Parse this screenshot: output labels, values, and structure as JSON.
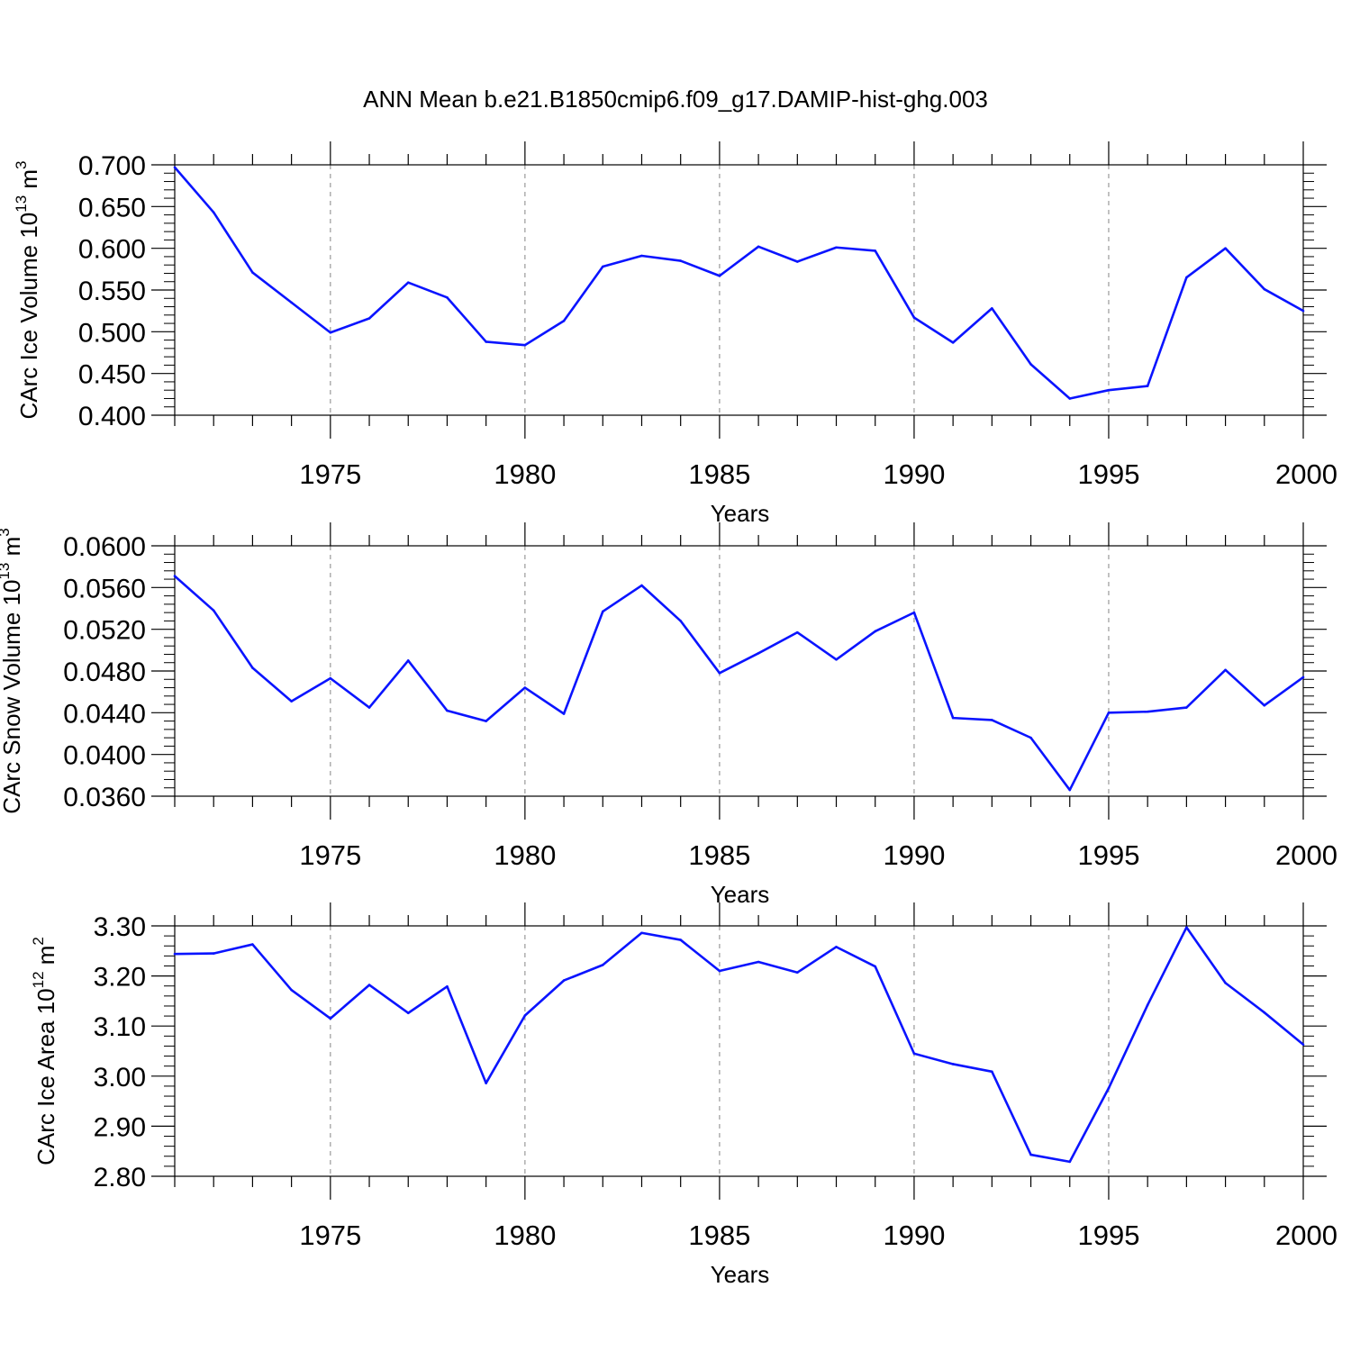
{
  "title": "ANN Mean b.e21.B1850cmip6.f09_g17.DAMIP-hist-ghg.003",
  "colors": {
    "line": "#0a14ff",
    "axis": "#000000",
    "grid": "#999999"
  },
  "chart_data": [
    {
      "type": "line",
      "ylabel": {
        "prefix": "CArc Ice Volume 10",
        "exp": "13",
        "unit": " m",
        "unit_exp": "3"
      },
      "xlabel": "Years",
      "xlim": [
        1971,
        2000
      ],
      "ylim": [
        0.4,
        0.7
      ],
      "yticks": [
        "0.400",
        "0.450",
        "0.500",
        "0.550",
        "0.600",
        "0.650",
        "0.700"
      ],
      "xticks": [
        "1975",
        "1980",
        "1985",
        "1990",
        "1995",
        "2000"
      ],
      "grid": "dashed vertical lines at labeled years",
      "x": [
        1971,
        1972,
        1973,
        1974,
        1975,
        1976,
        1977,
        1978,
        1979,
        1980,
        1981,
        1982,
        1983,
        1984,
        1985,
        1986,
        1987,
        1988,
        1989,
        1990,
        1991,
        1992,
        1993,
        1994,
        1995,
        1996,
        1997,
        1998,
        1999,
        2000
      ],
      "values": [
        0.697,
        0.643,
        0.571,
        0.535,
        0.499,
        0.516,
        0.559,
        0.541,
        0.488,
        0.484,
        0.513,
        0.578,
        0.591,
        0.585,
        0.567,
        0.602,
        0.584,
        0.601,
        0.597,
        0.517,
        0.487,
        0.528,
        0.461,
        0.42,
        0.43,
        0.435,
        0.565,
        0.6,
        0.551,
        0.525
      ]
    },
    {
      "type": "line",
      "ylabel": {
        "prefix": "CArc Snow Volume 10",
        "exp": "13",
        "unit": " m",
        "unit_exp": "3"
      },
      "xlabel": "Years",
      "xlim": [
        1971,
        2000
      ],
      "ylim": [
        0.036,
        0.06
      ],
      "yticks": [
        "0.0360",
        "0.0400",
        "0.0440",
        "0.0480",
        "0.0520",
        "0.0560",
        "0.0600"
      ],
      "xticks": [
        "1975",
        "1980",
        "1985",
        "1990",
        "1995",
        "2000"
      ],
      "grid": "dashed vertical lines at labeled years",
      "x": [
        1971,
        1972,
        1973,
        1974,
        1975,
        1976,
        1977,
        1978,
        1979,
        1980,
        1981,
        1982,
        1983,
        1984,
        1985,
        1986,
        1987,
        1988,
        1989,
        1990,
        1991,
        1992,
        1993,
        1994,
        1995,
        1996,
        1997,
        1998,
        1999,
        2000
      ],
      "values": [
        0.0571,
        0.0538,
        0.0483,
        0.0451,
        0.0473,
        0.0445,
        0.049,
        0.0442,
        0.0432,
        0.0464,
        0.0439,
        0.0537,
        0.0562,
        0.0528,
        0.0478,
        0.0497,
        0.0517,
        0.0491,
        0.0518,
        0.0536,
        0.0435,
        0.0433,
        0.0416,
        0.0366,
        0.044,
        0.0441,
        0.0445,
        0.0481,
        0.0447,
        0.0474
      ]
    },
    {
      "type": "line",
      "ylabel": {
        "prefix": "CArc Ice Area 10",
        "exp": "12",
        "unit": " m",
        "unit_exp": "2"
      },
      "xlabel": "Years",
      "xlim": [
        1971,
        2000
      ],
      "ylim": [
        2.8,
        3.3
      ],
      "yticks": [
        "2.80",
        "2.90",
        "3.00",
        "3.10",
        "3.20",
        "3.30"
      ],
      "xticks": [
        "1975",
        "1980",
        "1985",
        "1990",
        "1995",
        "2000"
      ],
      "grid": "dashed vertical lines at labeled years",
      "x": [
        1971,
        1972,
        1973,
        1974,
        1975,
        1976,
        1977,
        1978,
        1979,
        1980,
        1981,
        1982,
        1983,
        1984,
        1985,
        1986,
        1987,
        1988,
        1989,
        1990,
        1991,
        1992,
        1993,
        1994,
        1995,
        1996,
        1997,
        1998,
        1999,
        2000
      ],
      "values": [
        3.244,
        3.245,
        3.263,
        3.172,
        3.115,
        3.182,
        3.126,
        3.179,
        2.986,
        3.121,
        3.191,
        3.222,
        3.286,
        3.272,
        3.21,
        3.228,
        3.207,
        3.258,
        3.219,
        3.045,
        3.024,
        3.009,
        2.843,
        2.829,
        2.976,
        3.142,
        3.297,
        3.186,
        3.127,
        3.063
      ]
    }
  ]
}
